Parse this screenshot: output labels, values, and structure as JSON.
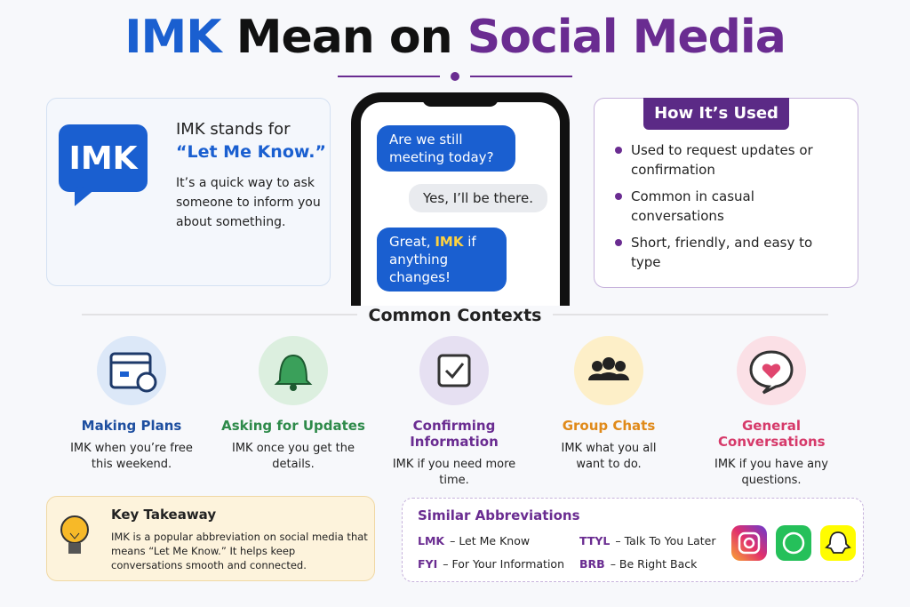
{
  "title": {
    "part1": "IMK",
    "part2": "Mean on",
    "part3": "Social Media"
  },
  "definition": {
    "abbr": "IMK",
    "lead": "IMK stands for",
    "meaning": "“Let Me Know.”",
    "text": "It’s a quick way to ask someone to inform you about something."
  },
  "chat": {
    "message1": "Are we still meeting today?",
    "message2": "Yes, I’ll be there.",
    "message3": {
      "before": "Great,",
      "highlight": "IMK",
      "after": "if anything changes!"
    }
  },
  "usage": {
    "title": "How It’s Used",
    "items": [
      "Used to request updates or confirmation",
      "Common in casual conversations",
      "Short, friendly, and easy to type"
    ]
  },
  "contexts": {
    "title": "Common Contexts",
    "items": [
      {
        "title": "Making Plans",
        "example": "IMK when you’re free this weekend."
      },
      {
        "title": "Asking for Updates",
        "example": "IMK once you get the details."
      },
      {
        "title": "Confirming Information",
        "example": "IMK if you need more time."
      },
      {
        "title": "Group Chats",
        "example": "IMK what you all want to do."
      },
      {
        "title": "General Conversations",
        "example": "IMK if you have any questions."
      }
    ]
  },
  "takeaway": {
    "title": "Key Takeaway",
    "text": "IMK is a popular abbreviation on social media that means “Let Me Know.” It helps keep conversations smooth and connected."
  },
  "similar": {
    "title": "Similar Abbreviations",
    "items": [
      {
        "abbr": "LMK",
        "meaning": "– Let Me Know"
      },
      {
        "abbr": "FYI",
        "meaning": "– For Your Information"
      },
      {
        "abbr": "TTYL",
        "meaning": "– Talk To You Later"
      },
      {
        "abbr": "BRB",
        "meaning": "– Be Right Back"
      }
    ]
  }
}
